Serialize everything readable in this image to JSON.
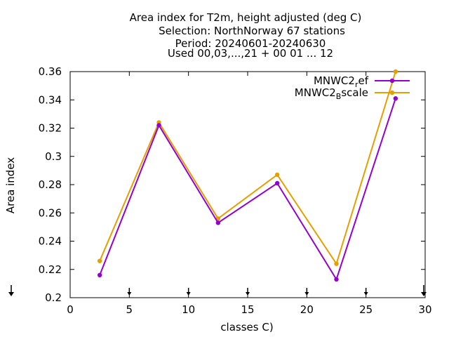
{
  "chart_data": {
    "type": "line",
    "title_lines": [
      "Area index  for T2m, height adjusted (deg C)",
      "Selection: NorthNorway     67 stations",
      "Period: 20240601-20240630",
      "Used 00,03,...,21 + 00 01 ... 12"
    ],
    "xlabel": "classes C)",
    "ylabel": "Area index",
    "xlim": [
      0,
      30
    ],
    "ylim": [
      0.2,
      0.36
    ],
    "x_ticks": [
      "0",
      "5",
      "10",
      "15",
      "20",
      "25",
      "30"
    ],
    "y_ticks": [
      "0.2",
      "0.22",
      "0.24",
      "0.26",
      "0.28",
      "0.3",
      "0.32",
      "0.34",
      "0.36"
    ],
    "legend_position": "top-right",
    "grid": false,
    "series": [
      {
        "name_main": "MNWC2",
        "name_sub": "r",
        "name_rest": "ef",
        "color": "#9400d3",
        "x": [
          2.5,
          7.5,
          12.5,
          17.5,
          22.5,
          27.5
        ],
        "y": [
          0.216,
          0.322,
          0.253,
          0.281,
          0.213,
          0.341
        ]
      },
      {
        "name_main": "MNWC2",
        "name_sub": "B",
        "name_rest": "scale",
        "color": "#e69f00",
        "x": [
          2.5,
          7.5,
          12.5,
          17.5,
          22.5,
          27.5
        ],
        "y": [
          0.226,
          0.324,
          0.256,
          0.287,
          0.224,
          0.36
        ]
      }
    ]
  }
}
